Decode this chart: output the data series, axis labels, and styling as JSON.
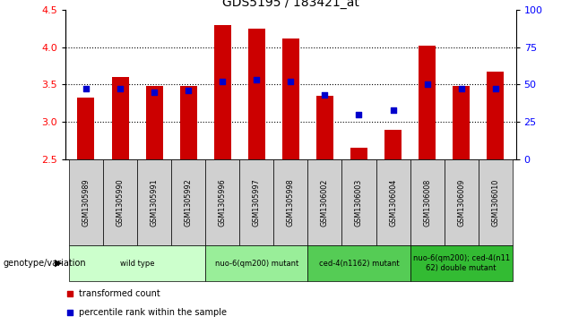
{
  "title": "GDS5195 / 183421_at",
  "samples": [
    "GSM1305989",
    "GSM1305990",
    "GSM1305991",
    "GSM1305992",
    "GSM1305996",
    "GSM1305997",
    "GSM1305998",
    "GSM1306002",
    "GSM1306003",
    "GSM1306004",
    "GSM1306008",
    "GSM1306009",
    "GSM1306010"
  ],
  "bar_values": [
    3.32,
    3.6,
    3.48,
    3.48,
    4.29,
    4.25,
    4.11,
    3.35,
    2.65,
    2.89,
    4.02,
    3.48,
    3.67
  ],
  "percentile_values": [
    47,
    47,
    45,
    46,
    52,
    53,
    52,
    43,
    30,
    33,
    50,
    47,
    47
  ],
  "ylim_left": [
    2.5,
    4.5
  ],
  "ylim_right": [
    0,
    100
  ],
  "yticks_left": [
    2.5,
    3.0,
    3.5,
    4.0,
    4.5
  ],
  "yticks_right": [
    0,
    25,
    50,
    75,
    100
  ],
  "bar_color": "#cc0000",
  "dot_color": "#0000cc",
  "bar_bottom": 2.5,
  "groups": [
    {
      "label": "wild type",
      "indices": [
        0,
        1,
        2,
        3
      ],
      "color": "#ccffcc"
    },
    {
      "label": "nuo-6(qm200) mutant",
      "indices": [
        4,
        5,
        6
      ],
      "color": "#99ee99"
    },
    {
      "label": "ced-4(n1162) mutant",
      "indices": [
        7,
        8,
        9
      ],
      "color": "#55cc55"
    },
    {
      "label": "nuo-6(qm200); ced-4(n11\n62) double mutant",
      "indices": [
        10,
        11,
        12
      ],
      "color": "#33bb33"
    }
  ],
  "legend_items": [
    {
      "label": "transformed count",
      "color": "#cc0000"
    },
    {
      "label": "percentile rank within the sample",
      "color": "#0000cc"
    }
  ],
  "genotype_label": "genotype/variation",
  "grid_vals": [
    3.0,
    3.5,
    4.0
  ],
  "sample_box_color": "#d0d0d0",
  "bar_width": 0.5
}
